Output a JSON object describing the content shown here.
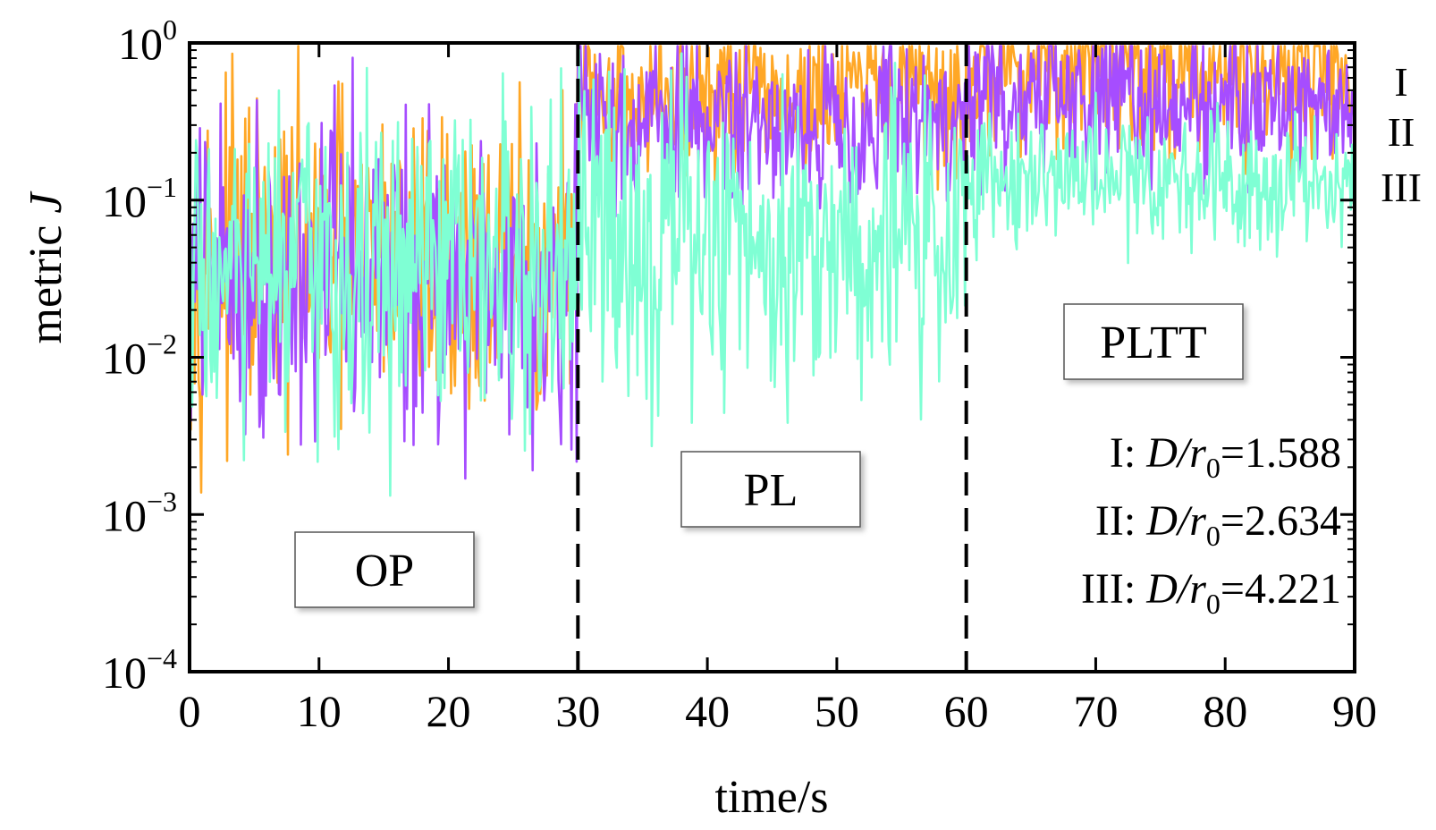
{
  "chart_data": {
    "type": "line",
    "xlabel": "time/s",
    "ylabel_text": "metric ",
    "ylabel_var": "J",
    "x_range": [
      0,
      90
    ],
    "y_scale": "log",
    "y_range": [
      0.0001,
      1
    ],
    "x_ticks": [
      0,
      10,
      20,
      30,
      40,
      50,
      60,
      70,
      80,
      90
    ],
    "x_tick_labels": [
      "0",
      "10",
      "20",
      "30",
      "40",
      "50",
      "60",
      "70",
      "80",
      "90"
    ],
    "y_ticks": [
      {
        "value": 1,
        "base": "10",
        "exp": "0"
      },
      {
        "value": 0.1,
        "base": "10",
        "exp": "−1"
      },
      {
        "value": 0.01,
        "base": "10",
        "exp": "−2"
      },
      {
        "value": 0.001,
        "base": "10",
        "exp": "−3"
      },
      {
        "value": 0.0001,
        "base": "10",
        "exp": "−4"
      }
    ],
    "phase_boundaries": [
      30,
      60
    ],
    "phases": [
      {
        "label": "OP",
        "x_start": 0,
        "x_end": 30
      },
      {
        "label": "PL",
        "x_start": 30,
        "x_end": 60
      },
      {
        "label": "PLTT",
        "x_start": 60,
        "x_end": 90
      }
    ],
    "series": [
      {
        "name": "I",
        "color": "#FFA726",
        "mean_log10_by_phase": [
          -1.4,
          -0.35,
          -0.15
        ],
        "legend_prefix": "I: ",
        "legend_var": "D/r",
        "legend_sub": "0",
        "legend_value": "=1.588"
      },
      {
        "name": "II",
        "color": "#A64DFF",
        "mean_log10_by_phase": [
          -1.45,
          -0.5,
          -0.35
        ],
        "legend_prefix": "II: ",
        "legend_var": "D/r",
        "legend_sub": "0",
        "legend_value": "=2.634"
      },
      {
        "name": "III",
        "color": "#7FFFD4",
        "mean_log10_by_phase": [
          -1.5,
          -1.25,
          -0.85
        ],
        "legend_prefix": "III: ",
        "legend_var": "D/r",
        "legend_sub": "0",
        "legend_value": "=4.221"
      }
    ],
    "grid": false,
    "legend_placement": "bottom-right"
  }
}
